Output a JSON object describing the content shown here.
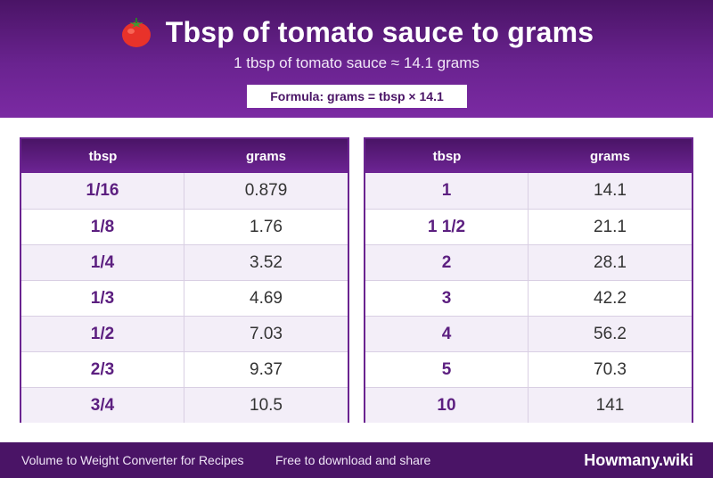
{
  "header": {
    "icon": "tomato-icon",
    "title": "Tbsp of tomato sauce to grams",
    "subtitle": "1 tbsp of tomato sauce ≈ 14.1 grams",
    "formula": "Formula: grams = tbsp × 14.1"
  },
  "tables": [
    {
      "col_tbsp": "tbsp",
      "col_grams": "grams",
      "rows": [
        {
          "tbsp": "1/16",
          "grams": "0.879"
        },
        {
          "tbsp": "1/8",
          "grams": "1.76"
        },
        {
          "tbsp": "1/4",
          "grams": "3.52"
        },
        {
          "tbsp": "1/3",
          "grams": "4.69"
        },
        {
          "tbsp": "1/2",
          "grams": "7.03"
        },
        {
          "tbsp": "2/3",
          "grams": "9.37"
        },
        {
          "tbsp": "3/4",
          "grams": "10.5"
        }
      ]
    },
    {
      "col_tbsp": "tbsp",
      "col_grams": "grams",
      "rows": [
        {
          "tbsp": "1",
          "grams": "14.1"
        },
        {
          "tbsp": "1 1/2",
          "grams": "21.1"
        },
        {
          "tbsp": "2",
          "grams": "28.1"
        },
        {
          "tbsp": "3",
          "grams": "42.2"
        },
        {
          "tbsp": "4",
          "grams": "56.2"
        },
        {
          "tbsp": "5",
          "grams": "70.3"
        },
        {
          "tbsp": "10",
          "grams": "141"
        }
      ]
    }
  ],
  "footer": {
    "left": "Volume to Weight Converter for Recipes",
    "middle": "Free to download and share",
    "brand": "Howmany.wiki"
  },
  "colors": {
    "header_dark": "#4a1466",
    "header_light": "#7b2aa3",
    "accent_text": "#5c1f80",
    "row_alt": "#f3eef8"
  }
}
